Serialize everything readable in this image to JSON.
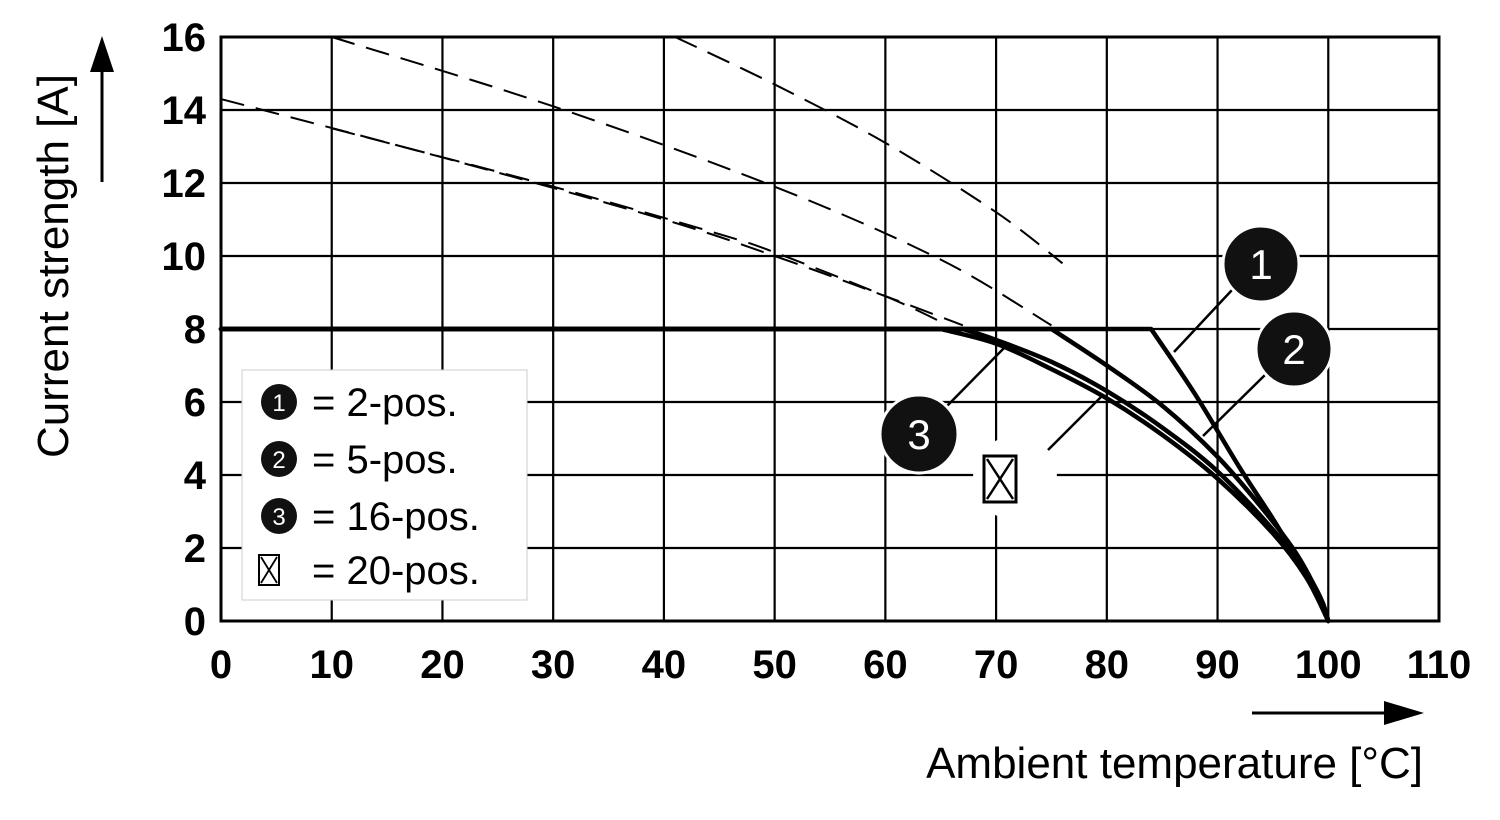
{
  "chart_data": {
    "type": "line",
    "xlabel": "Ambient temperature [°C]",
    "ylabel": "Current strength [A]",
    "xlim": [
      0,
      110
    ],
    "ylim": [
      0,
      16
    ],
    "x_ticks": [
      "0",
      "10",
      "20",
      "30",
      "40",
      "50",
      "60",
      "70",
      "80",
      "90",
      "100",
      "110"
    ],
    "y_ticks": [
      "0",
      "2",
      "4",
      "6",
      "8",
      "10",
      "12",
      "14",
      "16"
    ],
    "grid": true,
    "legend_position": "bottom-left",
    "series": [
      {
        "marker": "1",
        "label": "2-pos.",
        "style": "solid",
        "x": [
          0,
          84,
          88,
          92,
          95,
          97,
          98.5,
          99.5,
          100
        ],
        "y": [
          8,
          8,
          6.2,
          4.2,
          2.8,
          1.8,
          1.1,
          0.5,
          0
        ]
      },
      {
        "marker": "2",
        "label": "5-pos.",
        "style": "solid",
        "x": [
          0,
          75,
          80,
          85,
          90,
          94,
          97,
          99,
          100
        ],
        "y": [
          8,
          8,
          7.0,
          5.9,
          4.5,
          3.1,
          1.9,
          0.8,
          0
        ]
      },
      {
        "marker": "3",
        "label": "16-pos.",
        "style": "solid",
        "x": [
          0,
          67,
          70,
          75,
          80,
          85,
          90,
          95,
          98,
          100
        ],
        "y": [
          8,
          8,
          7.7,
          7.1,
          6.3,
          5.3,
          4.1,
          2.5,
          1.3,
          0
        ]
      },
      {
        "marker": "crossed-box",
        "label": "20-pos.",
        "style": "solid",
        "x": [
          0,
          65,
          70,
          75,
          80,
          85,
          90,
          95,
          98,
          100
        ],
        "y": [
          8,
          8,
          7.6,
          6.9,
          6.1,
          5.1,
          3.9,
          2.4,
          1.2,
          0
        ]
      }
    ],
    "dashed_extensions": [
      {
        "x": [
          41,
          50,
          60,
          70,
          76
        ],
        "y": [
          16,
          14.7,
          13.1,
          11.2,
          9.8
        ]
      },
      {
        "x": [
          10,
          30,
          50,
          65,
          75
        ],
        "y": [
          16,
          14.1,
          11.9,
          9.9,
          8.1
        ]
      },
      {
        "x": [
          0,
          20,
          40,
          50,
          60,
          67
        ],
        "y": [
          14.3,
          12.7,
          11.0,
          10.0,
          8.9,
          8.1
        ]
      },
      {
        "x": [
          10,
          30,
          45,
          50,
          60,
          65
        ],
        "y": [
          13.5,
          11.9,
          10.6,
          10.1,
          8.9,
          8.2
        ]
      }
    ],
    "legend": [
      {
        "symbol": "1",
        "text": "= 2-pos."
      },
      {
        "symbol": "2",
        "text": "= 5-pos."
      },
      {
        "symbol": "3",
        "text": "= 16-pos."
      },
      {
        "symbol": "crossed-box",
        "text": "= 20-pos."
      }
    ],
    "callout_labels": [
      "1",
      "2",
      "3"
    ]
  },
  "colors": {
    "line": "#000000",
    "grid": "#000000",
    "background": "#ffffff",
    "marker_fill": "#111111"
  }
}
